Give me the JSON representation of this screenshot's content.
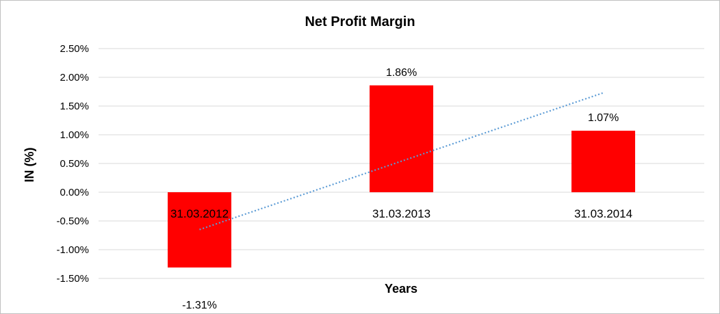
{
  "chart_data": {
    "type": "bar",
    "title": "Net Profit Margin",
    "xlabel": "Years",
    "ylabel": "IN (%)",
    "categories": [
      "31.03.2012",
      "31.03.2013",
      "31.03.2014"
    ],
    "series": [
      {
        "values": [
          -1.31,
          1.86,
          1.07
        ],
        "labels": [
          "-1.31%",
          "1.86%",
          "1.07%"
        ],
        "color": "#ff0000"
      }
    ],
    "trendline": {
      "type": "linear",
      "style": "dotted",
      "color": "#5b9bd5"
    },
    "yticks": [
      "2.50%",
      "2.00%",
      "1.50%",
      "1.00%",
      "0.50%",
      "0.00%",
      "-0.50%",
      "-1.00%",
      "-1.50%"
    ],
    "ylim": [
      -1.5,
      2.5
    ],
    "grid": true,
    "legend": "none"
  }
}
